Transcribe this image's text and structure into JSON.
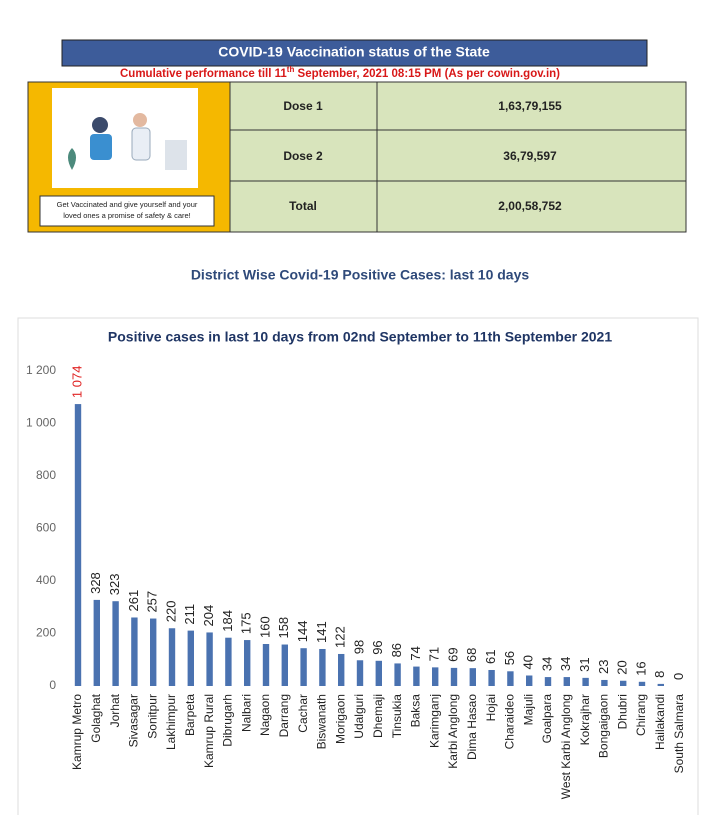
{
  "header": {
    "title": "COVID-19 Vaccination status of the State",
    "subtitle_parts": [
      "Cumulative performance till 11",
      "th",
      " September, 2021 08:15 PM (As per cowin.gov.in)"
    ]
  },
  "poster": {
    "caption_lines": [
      "Get Vaccinated and give yourself and your",
      "loved ones a promise of safety & care!"
    ]
  },
  "table": {
    "rows": [
      [
        "Dose 1",
        "1,63,79,155"
      ],
      [
        "Dose 2",
        "36,79,597"
      ],
      [
        "Total",
        "2,00,58,752"
      ]
    ]
  },
  "section_title": "District Wise Covid-19 Positive Cases: last 10 days",
  "chart_data": {
    "type": "bar",
    "title": "Positive cases in last 10 days from 02nd September to 11th September 2021",
    "categories": [
      "Kamrup Metro",
      "Golaghat",
      "Jorhat",
      "Sivasagar",
      "Sonitpur",
      "Lakhimpur",
      "Barpeta",
      "Kamrup Rural",
      "Dibrugarh",
      "Nalbari",
      "Nagaon",
      "Darrang",
      "Cachar",
      "Biswanath",
      "Morigaon",
      "Udalguri",
      "Dhemaji",
      "Tinsukia",
      "Baksa",
      "Karimganj",
      "Karbi Anglong",
      "Dima Hasao",
      "Hojai",
      "Charaideo",
      "Majuli",
      "Goalpara",
      "West Karbi Anglong",
      "Kokrajhar",
      "Bongaigaon",
      "Dhubri",
      "Chirang",
      "Hailakandi",
      "South Salmara"
    ],
    "values": [
      1074,
      328,
      323,
      261,
      257,
      220,
      211,
      204,
      184,
      175,
      160,
      158,
      144,
      141,
      122,
      98,
      96,
      86,
      74,
      71,
      69,
      68,
      61,
      56,
      40,
      34,
      34,
      31,
      23,
      20,
      16,
      8,
      0
    ],
    "value_labels": [
      "1 074",
      "328",
      "323",
      "261",
      "257",
      "220",
      "211",
      "204",
      "184",
      "175",
      "160",
      "158",
      "144",
      "141",
      "122",
      "98",
      "96",
      "86",
      "74",
      "71",
      "69",
      "68",
      "61",
      "56",
      "40",
      "34",
      "34",
      "31",
      "23",
      "20",
      "16",
      "8",
      "0"
    ],
    "color": "#4a72b0",
    "label_color": "#222222",
    "highlight_label_color": "#e02424",
    "ylim": [
      0,
      1200
    ],
    "yticks": [
      0,
      200,
      400,
      600,
      800,
      {
        "value": 1000,
        "label": "1 000"
      },
      {
        "value": 1200,
        "label": "1 200"
      }
    ],
    "grid": false
  }
}
